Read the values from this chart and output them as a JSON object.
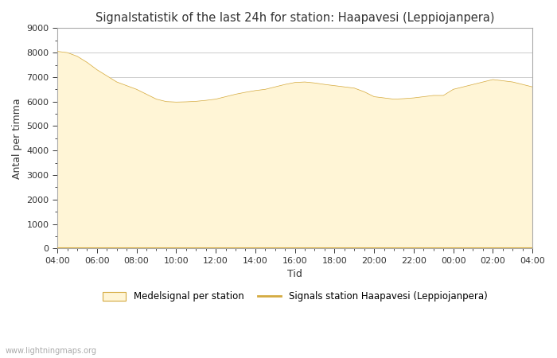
{
  "title": "Signalstatistik of the last 24h for station: Haapavesi (Leppiojanpera)",
  "xlabel": "Tid",
  "ylabel": "Antal per timma",
  "watermark": "www.lightningmaps.org",
  "ylim": [
    0,
    9000
  ],
  "yticks": [
    0,
    1000,
    2000,
    3000,
    4000,
    5000,
    6000,
    7000,
    8000,
    9000
  ],
  "xtick_labels": [
    "04:00",
    "06:00",
    "08:00",
    "10:00",
    "12:00",
    "14:00",
    "16:00",
    "18:00",
    "20:00",
    "22:00",
    "00:00",
    "02:00",
    "04:00"
  ],
  "fill_color": "#FFF5D6",
  "line_color": "#D4AA40",
  "station_line_color": "#D4AA40",
  "bg_color": "#FFFFFF",
  "plot_bg_color": "#FFFFFF",
  "grid_color": "#CCCCCC",
  "legend_fill_label": "Medelsignal per station",
  "legend_line_label": "Signals station Haapavesi (Leppiojanpera)",
  "x_values": [
    0,
    1,
    2,
    3,
    4,
    5,
    6,
    7,
    8,
    9,
    10,
    11,
    12,
    13,
    14,
    15,
    16,
    17,
    18,
    19,
    20,
    21,
    22,
    23,
    24,
    25,
    26,
    27,
    28,
    29,
    30,
    31,
    32,
    33,
    34,
    35,
    36,
    37,
    38,
    39,
    40,
    41,
    42,
    43,
    44,
    45,
    46,
    47,
    48
  ],
  "fill_values": [
    8050,
    8000,
    7850,
    7600,
    7300,
    7050,
    6800,
    6650,
    6500,
    6300,
    6100,
    6000,
    5980,
    5990,
    6010,
    6050,
    6100,
    6200,
    6300,
    6380,
    6450,
    6500,
    6600,
    6700,
    6780,
    6800,
    6760,
    6700,
    6650,
    6600,
    6550,
    6400,
    6200,
    6150,
    6100,
    6120,
    6150,
    6200,
    6250,
    6250,
    6500,
    6600,
    6700,
    6800,
    6900,
    6850,
    6800,
    6700,
    6600
  ],
  "station_values": [
    20,
    20,
    20,
    20,
    20,
    20,
    20,
    20,
    20,
    20,
    20,
    20,
    20,
    20,
    20,
    20,
    20,
    20,
    20,
    20,
    20,
    20,
    20,
    20,
    20,
    20,
    20,
    20,
    20,
    20,
    20,
    20,
    20,
    20,
    20,
    20,
    20,
    20,
    20,
    20,
    20,
    20,
    20,
    20,
    20,
    20,
    20,
    20,
    20
  ]
}
